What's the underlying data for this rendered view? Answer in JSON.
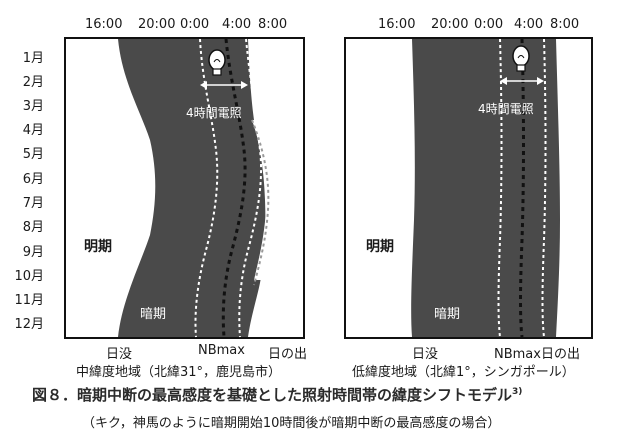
{
  "time_ticks": [
    "16:00",
    "20:00",
    "0:00",
    "4:00",
    "8:00"
  ],
  "months": [
    "1月",
    "2月",
    "3月",
    "4月",
    "5月",
    "6月",
    "7月",
    "8月",
    "9月",
    "10月",
    "11月",
    "12月"
  ],
  "labels": {
    "bright": "明期",
    "dark": "暗期",
    "lighting": "4時間電照",
    "sunset": "日没",
    "nbmax": "NBmax",
    "sunrise": "日の出",
    "nbmax_sunrise": "NBmax日の出"
  },
  "panels": {
    "left_region": "中緯度地域（北緯31°，鹿児島市）",
    "right_region": "低緯度地域（北緯1°，シンガポール）"
  },
  "caption": {
    "title": "図８．暗期中断の最高感度を基礎とした照射時間帯の緯度シフトモデル",
    "ref": "3)",
    "note": "（キク，神馬のように暗期開始10時間後が暗期中断の最高感度の場合）"
  },
  "colors": {
    "dark": "#4a4a4a",
    "frame": "#111111"
  }
}
